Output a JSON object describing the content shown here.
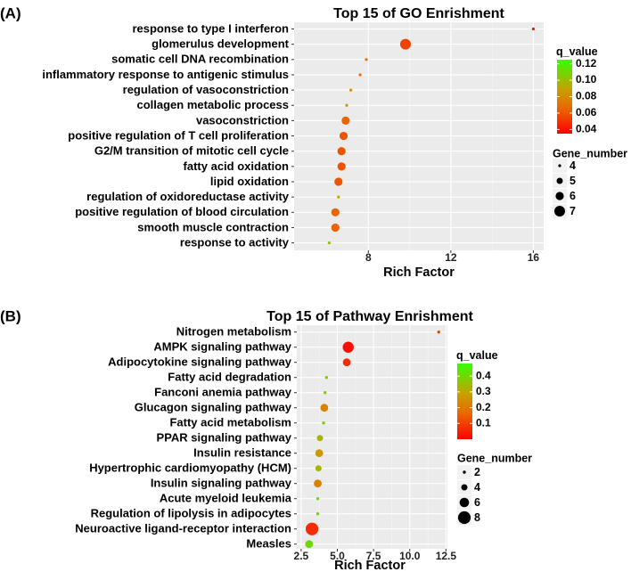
{
  "chart_data": [
    {
      "panel_label": "(A)",
      "type": "scatter",
      "title": "Top 15 of GO Enrishment",
      "xlabel": "Rich Factor",
      "xlim": [
        4.4,
        16.5
      ],
      "xticks": [
        8,
        12,
        16
      ],
      "grid": true,
      "legend_position": "right",
      "color_legend": {
        "title": "q_value",
        "ticks": [
          0.12,
          0.1,
          0.08,
          0.06,
          0.04
        ],
        "range": [
          0.035,
          0.125
        ],
        "low_color": "#ff0000",
        "high_color": "#33ff00"
      },
      "size_legend": {
        "title": "Gene_number",
        "ticks": [
          4,
          5,
          6,
          7
        ]
      },
      "categories": [
        "response to type I interferon",
        "glomerulus development",
        "somatic cell DNA recombination",
        "inflammatory response to antigenic stimulus",
        "regulation of vasoconstriction",
        "collagen metabolic process",
        "vasoconstriction",
        "positive regulation of T cell proliferation",
        "G2/M transition of mitotic cell cycle",
        "fatty acid oxidation",
        "lipid oxidation",
        "regulation of oxidoreductase activity",
        "positive regulation of blood circulation",
        "smooth muscle contraction",
        "response to activity"
      ],
      "rich_factor": [
        16.0,
        9.8,
        7.9,
        7.6,
        7.15,
        6.95,
        6.9,
        6.8,
        6.7,
        6.7,
        6.55,
        6.55,
        6.4,
        6.4,
        6.1
      ],
      "q_value": [
        0.04,
        0.055,
        0.068,
        0.068,
        0.08,
        0.085,
        0.065,
        0.06,
        0.06,
        0.06,
        0.06,
        0.09,
        0.065,
        0.065,
        0.1
      ],
      "gene_number": [
        4,
        7,
        4,
        4,
        4,
        4,
        6,
        6,
        6,
        6,
        6,
        4,
        6,
        6,
        4
      ]
    },
    {
      "panel_label": "(B)",
      "type": "scatter",
      "title": "Top 15 of Pathway Enrishment",
      "xlabel": "Rich Factor",
      "xlim": [
        2.2,
        12.6
      ],
      "xticks": [
        2.5,
        5.0,
        7.5,
        10.0,
        12.5
      ],
      "grid": true,
      "legend_position": "right",
      "color_legend": {
        "title": "q_value",
        "ticks": [
          0.4,
          0.3,
          0.2,
          0.1
        ],
        "range": [
          0.0,
          0.48
        ],
        "low_color": "#ff0000",
        "high_color": "#33ff00"
      },
      "size_legend": {
        "title": "Gene_number",
        "ticks": [
          2,
          4,
          6,
          8
        ]
      },
      "categories": [
        "Nitrogen metabolism",
        "AMPK signaling pathway",
        "Adipocytokine signaling pathway",
        "Fatty acid degradation",
        "Fanconi anemia pathway",
        "Glucagon signaling pathway",
        "Fatty acid metabolism",
        "PPAR signaling pathway",
        "Insulin resistance",
        "Hypertrophic cardiomyopathy (HCM)",
        "Insulin signaling pathway",
        "Acute myeloid leukemia",
        "Regulation of lipolysis in adipocytes",
        "Neuroactive ligand-receptor interaction",
        "Measles"
      ],
      "rich_factor": [
        12.0,
        5.75,
        5.65,
        4.25,
        4.15,
        4.1,
        4.05,
        3.8,
        3.75,
        3.7,
        3.65,
        3.65,
        3.65,
        3.25,
        3.05
      ],
      "q_value": [
        0.1,
        0.02,
        0.07,
        0.37,
        0.38,
        0.22,
        0.38,
        0.33,
        0.27,
        0.33,
        0.22,
        0.4,
        0.4,
        0.07,
        0.4
      ],
      "gene_number": [
        2,
        7,
        5,
        2,
        2,
        5,
        2,
        4,
        5,
        4,
        5,
        2,
        2,
        8,
        5
      ]
    }
  ]
}
